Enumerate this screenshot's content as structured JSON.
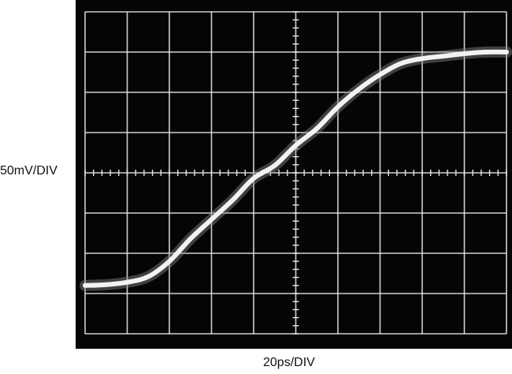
{
  "chart_data": {
    "type": "line",
    "title": "",
    "xlabel": "20ps/DIV",
    "ylabel": "50mV/DIV",
    "x_unit_per_div": "20ps",
    "y_unit_per_div": "50mV",
    "grid": true,
    "grid_divisions": {
      "x": 10,
      "y": 8
    },
    "xlim": [
      -100,
      100
    ],
    "ylim": [
      -200,
      200
    ],
    "background_color": "#050505",
    "grid_color": "#e6e6e6",
    "trace_color": "#f2f2f2",
    "series": [
      {
        "x": [
          -100,
          -90,
          -80,
          -70,
          -60,
          -50,
          -40,
          -30,
          -20,
          -10,
          0,
          10,
          20,
          30,
          40,
          50,
          60,
          70,
          80,
          90,
          100
        ],
        "values": [
          -140,
          -139,
          -136,
          -129,
          -110,
          -82,
          -58,
          -34,
          -7,
          9,
          34,
          55,
          82,
          104,
          122,
          136,
          142,
          145,
          148,
          150,
          150
        ]
      }
    ]
  }
}
